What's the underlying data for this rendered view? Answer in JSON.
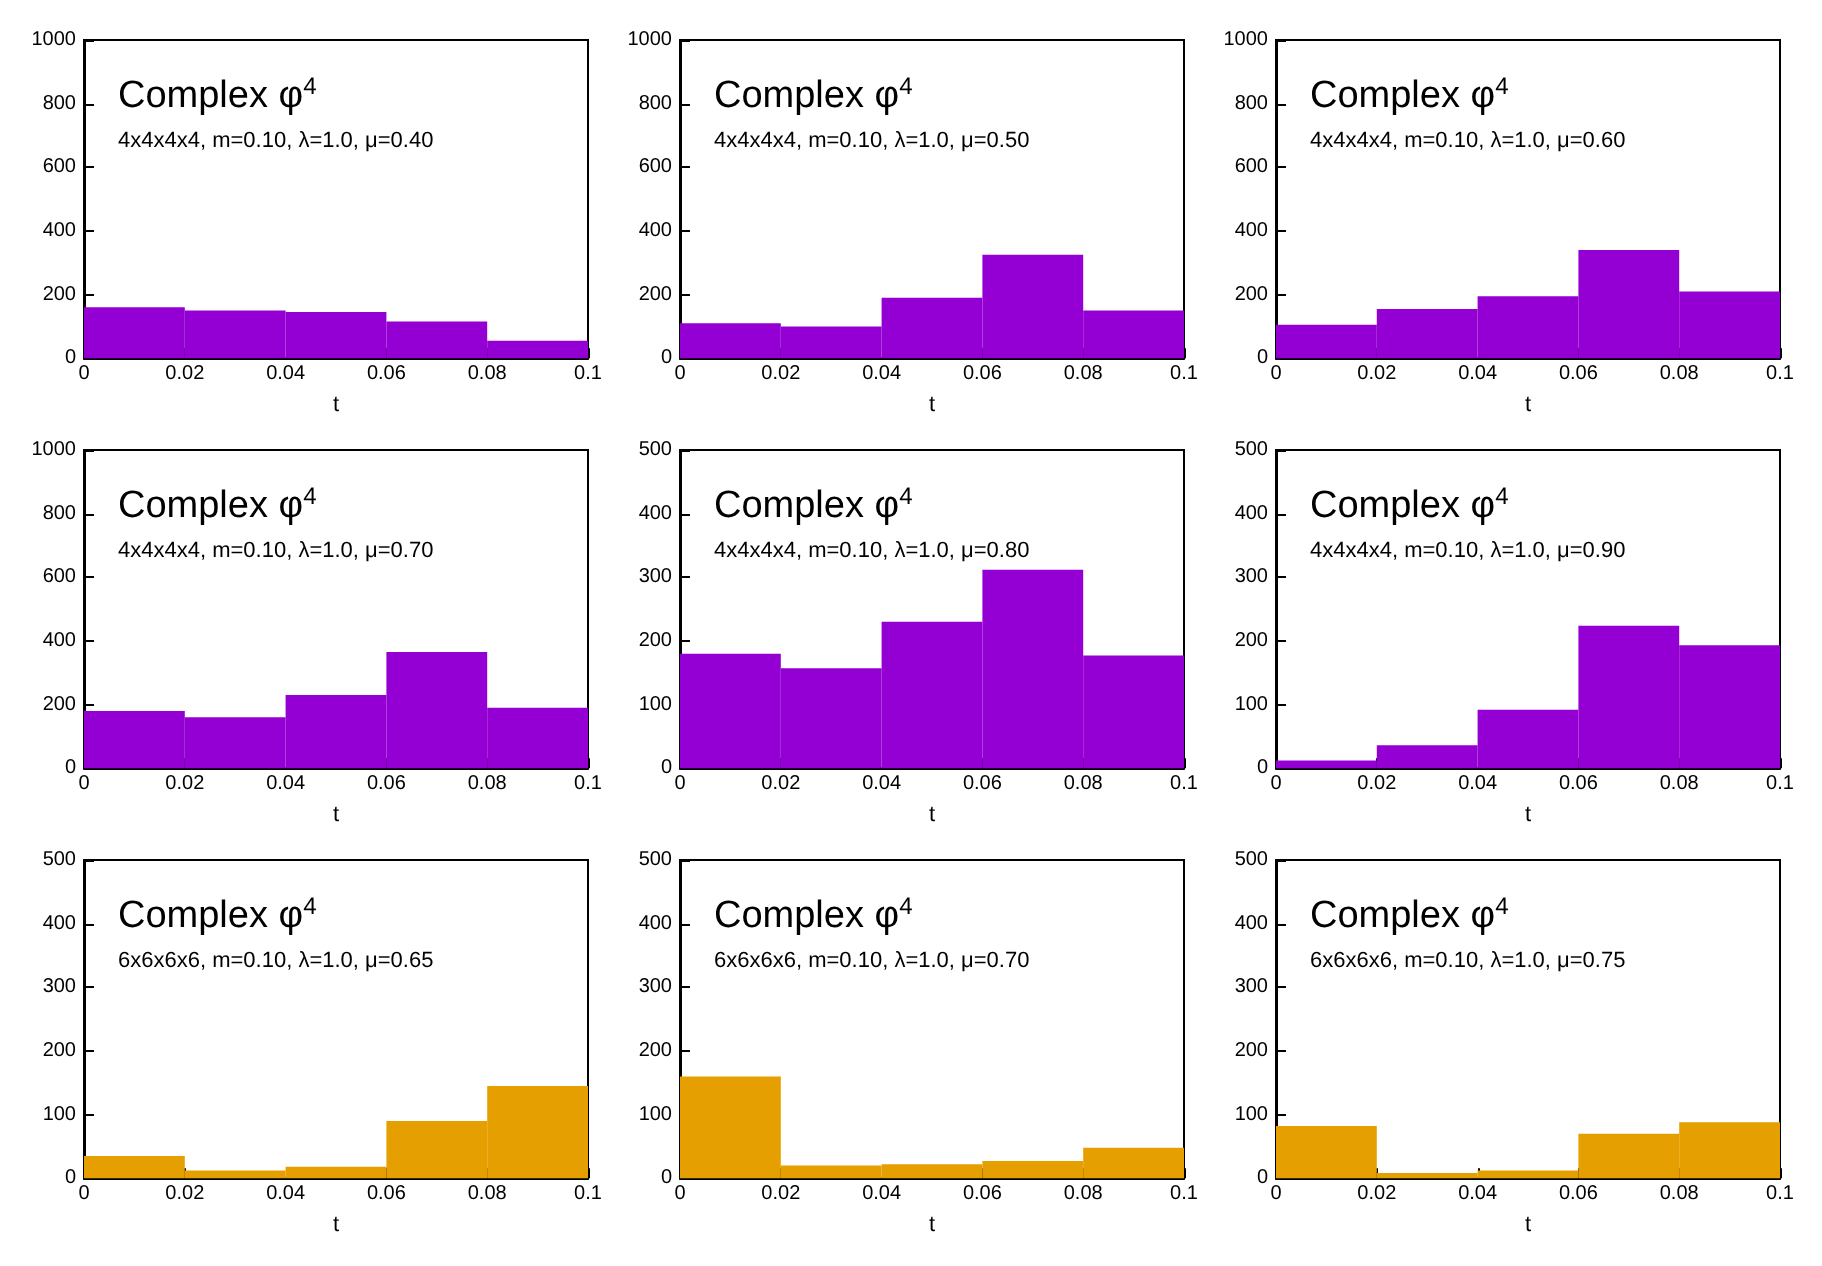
{
  "chart_data": [
    {
      "type": "histogram",
      "title": "Complex φ$^{4}$",
      "subtitle": "4x4x4x4, m=0.10, λ=1.0, μ=0.40",
      "xlabel": "t",
      "bins": [
        0,
        0.02,
        0.04,
        0.06,
        0.08,
        0.1
      ],
      "values": [
        160,
        150,
        145,
        115,
        55
      ],
      "color": "#9400d3",
      "xlim": [
        0,
        0.1
      ],
      "xticks": [
        0,
        0.02,
        0.04,
        0.06,
        0.08,
        0.1
      ],
      "ylim": [
        0,
        1000
      ],
      "yticks": [
        0,
        200,
        400,
        600,
        800,
        1000
      ]
    },
    {
      "type": "histogram",
      "title": "Complex φ$^{4}$",
      "subtitle": "4x4x4x4, m=0.10, λ=1.0, μ=0.50",
      "xlabel": "t",
      "bins": [
        0,
        0.02,
        0.04,
        0.06,
        0.08,
        0.1
      ],
      "values": [
        110,
        100,
        190,
        325,
        150
      ],
      "color": "#9400d3",
      "xlim": [
        0,
        0.1
      ],
      "xticks": [
        0,
        0.02,
        0.04,
        0.06,
        0.08,
        0.1
      ],
      "ylim": [
        0,
        1000
      ],
      "yticks": [
        0,
        200,
        400,
        600,
        800,
        1000
      ]
    },
    {
      "type": "histogram",
      "title": "Complex φ$^{4}$",
      "subtitle": "4x4x4x4, m=0.10, λ=1.0, μ=0.60",
      "xlabel": "t",
      "bins": [
        0,
        0.02,
        0.04,
        0.06,
        0.08,
        0.1
      ],
      "values": [
        105,
        155,
        195,
        340,
        210
      ],
      "color": "#9400d3",
      "xlim": [
        0,
        0.1
      ],
      "xticks": [
        0,
        0.02,
        0.04,
        0.06,
        0.08,
        0.1
      ],
      "ylim": [
        0,
        1000
      ],
      "yticks": [
        0,
        200,
        400,
        600,
        800,
        1000
      ]
    },
    {
      "type": "histogram",
      "title": "Complex φ$^{4}$",
      "subtitle": "4x4x4x4, m=0.10, λ=1.0, μ=0.70",
      "xlabel": "t",
      "bins": [
        0,
        0.02,
        0.04,
        0.06,
        0.08,
        0.1
      ],
      "values": [
        180,
        160,
        230,
        365,
        190
      ],
      "color": "#9400d3",
      "xlim": [
        0,
        0.1
      ],
      "xticks": [
        0,
        0.02,
        0.04,
        0.06,
        0.08,
        0.1
      ],
      "ylim": [
        0,
        1000
      ],
      "yticks": [
        0,
        200,
        400,
        600,
        800,
        1000
      ]
    },
    {
      "type": "histogram",
      "title": "Complex φ$^{4}$",
      "subtitle": "4x4x4x4, m=0.10, λ=1.0, μ=0.80",
      "xlabel": "t",
      "bins": [
        0,
        0.02,
        0.04,
        0.06,
        0.08,
        0.1
      ],
      "values": [
        180,
        157,
        230,
        312,
        177
      ],
      "color": "#9400d3",
      "xlim": [
        0,
        0.1
      ],
      "xticks": [
        0,
        0.02,
        0.04,
        0.06,
        0.08,
        0.1
      ],
      "ylim": [
        0,
        500
      ],
      "yticks": [
        0,
        100,
        200,
        300,
        400,
        500
      ]
    },
    {
      "type": "histogram",
      "title": "Complex φ$^{4}$",
      "subtitle": "4x4x4x4, m=0.10, λ=1.0, μ=0.90",
      "xlabel": "t",
      "bins": [
        0,
        0.02,
        0.04,
        0.06,
        0.08,
        0.1
      ],
      "values": [
        12,
        36,
        92,
        224,
        193
      ],
      "color": "#9400d3",
      "xlim": [
        0,
        0.1
      ],
      "xticks": [
        0,
        0.02,
        0.04,
        0.06,
        0.08,
        0.1
      ],
      "ylim": [
        0,
        500
      ],
      "yticks": [
        0,
        100,
        200,
        300,
        400,
        500
      ]
    },
    {
      "type": "histogram",
      "title": "Complex φ$^{4}$",
      "subtitle": "6x6x6x6, m=0.10, λ=1.0, μ=0.65",
      "xlabel": "t",
      "bins": [
        0,
        0.02,
        0.04,
        0.06,
        0.08,
        0.1
      ],
      "values": [
        35,
        12,
        18,
        90,
        145
      ],
      "color": "#e69f00",
      "xlim": [
        0,
        0.1
      ],
      "xticks": [
        0,
        0.02,
        0.04,
        0.06,
        0.08,
        0.1
      ],
      "ylim": [
        0,
        500
      ],
      "yticks": [
        0,
        100,
        200,
        300,
        400,
        500
      ]
    },
    {
      "type": "histogram",
      "title": "Complex φ$^{4}$",
      "subtitle": "6x6x6x6, m=0.10, λ=1.0, μ=0.70",
      "xlabel": "t",
      "bins": [
        0,
        0.02,
        0.04,
        0.06,
        0.08,
        0.1
      ],
      "values": [
        160,
        20,
        22,
        27,
        48
      ],
      "color": "#e69f00",
      "xlim": [
        0,
        0.1
      ],
      "xticks": [
        0,
        0.02,
        0.04,
        0.06,
        0.08,
        0.1
      ],
      "ylim": [
        0,
        500
      ],
      "yticks": [
        0,
        100,
        200,
        300,
        400,
        500
      ]
    },
    {
      "type": "histogram",
      "title": "Complex φ$^{4}$",
      "subtitle": "6x6x6x6, m=0.10, λ=1.0, μ=0.75",
      "xlabel": "t",
      "bins": [
        0,
        0.02,
        0.04,
        0.06,
        0.08,
        0.1
      ],
      "values": [
        82,
        8,
        12,
        70,
        88
      ],
      "color": "#e69f00",
      "xlim": [
        0,
        0.1
      ],
      "xticks": [
        0,
        0.02,
        0.04,
        0.06,
        0.08,
        0.1
      ],
      "ylim": [
        0,
        500
      ],
      "yticks": [
        0,
        100,
        200,
        300,
        400,
        500
      ]
    }
  ]
}
